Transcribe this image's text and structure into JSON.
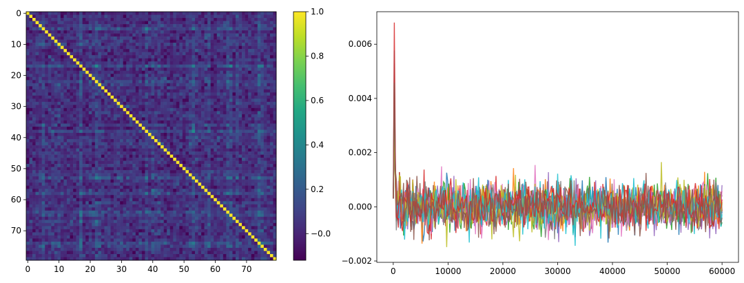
{
  "chart_data": [
    {
      "type": "heatmap",
      "title": "",
      "xlabel": "",
      "ylabel": "",
      "matrix_size": 80,
      "diagonal_value": 1.0,
      "off_diagonal_range": [
        -0.12,
        0.4
      ],
      "x_ticks": [
        0,
        10,
        20,
        30,
        40,
        50,
        60,
        70
      ],
      "y_ticks": [
        0,
        10,
        20,
        30,
        40,
        50,
        60,
        70
      ],
      "x_tick_labels": [
        "0",
        "10",
        "20",
        "30",
        "40",
        "50",
        "60",
        "70"
      ],
      "y_tick_labels": [
        "0",
        "10",
        "20",
        "30",
        "40",
        "50",
        "60",
        "70"
      ],
      "colormap": "viridis",
      "colorbar": {
        "range": [
          -0.12,
          1.0
        ],
        "ticks": [
          -0.0,
          0.2,
          0.4,
          0.6,
          0.8,
          1.0
        ],
        "tick_labels": [
          "−0.0",
          "0.2",
          "0.4",
          "0.6",
          "0.8",
          "1.0"
        ]
      }
    },
    {
      "type": "line",
      "title": "",
      "xlabel": "",
      "ylabel": "",
      "xlim": [
        -3000,
        63000
      ],
      "ylim": [
        -0.00205,
        0.0072
      ],
      "x_ticks": [
        0,
        10000,
        20000,
        30000,
        40000,
        50000,
        60000
      ],
      "x_tick_labels": [
        "0",
        "10000",
        "20000",
        "30000",
        "40000",
        "50000",
        "60000"
      ],
      "y_ticks": [
        -0.002,
        0.0,
        0.002,
        0.004,
        0.006
      ],
      "y_tick_labels": [
        "−0.002",
        "0.000",
        "0.002",
        "0.004",
        "0.006"
      ],
      "x_end": 60000,
      "peak": {
        "x": 0,
        "y": 0.0068
      },
      "noise_amplitude": 0.0009,
      "series_colors": [
        "#1f77b4",
        "#ff7f0e",
        "#2ca02c",
        "#d62728",
        "#9467bd",
        "#8c564b",
        "#e377c2",
        "#7f7f7f",
        "#bcbd22",
        "#17becf",
        "#d62728",
        "#8c564b"
      ]
    }
  ]
}
